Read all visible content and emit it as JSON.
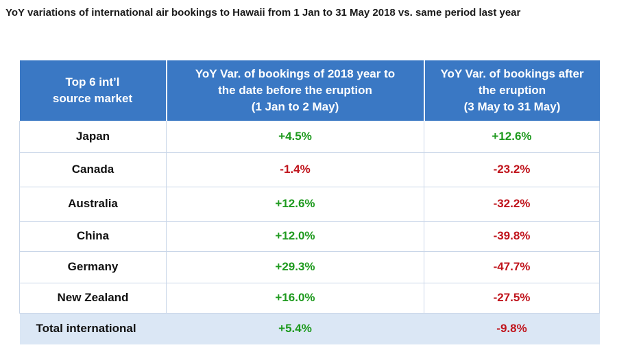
{
  "title": "YoY variations of international air bookings to Hawaii from 1 Jan to 31 May 2018 vs. same period last year",
  "colors": {
    "header_bg": "#3a78c4",
    "total_row_bg": "#dbe7f5",
    "positive": "#1e9a1e",
    "negative": "#c0141c"
  },
  "chart_data": {
    "type": "table",
    "title": "YoY variations of international air bookings to Hawaii from 1 Jan to 31 May 2018 vs. same period last year",
    "columns": [
      [
        "Top 6 int’l",
        "source market"
      ],
      [
        "YoY Var. of bookings of 2018 year to",
        "the date before the eruption",
        "(1 Jan to 2 May)"
      ],
      [
        "YoY Var. of bookings after",
        "the eruption",
        "(3 May to 31 May)"
      ]
    ],
    "rows": [
      {
        "market": "Japan",
        "before": "+4.5%",
        "after": "+12.6%"
      },
      {
        "market": "Canada",
        "before": "-1.4%",
        "after": "-23.2%"
      },
      {
        "market": "Australia",
        "before": "+12.6%",
        "after": "-32.2%"
      },
      {
        "market": "China",
        "before": "+12.0%",
        "after": "-39.8%"
      },
      {
        "market": "Germany",
        "before": "+29.3%",
        "after": "-47.7%"
      },
      {
        "market": "New Zealand",
        "before": "+16.0%",
        "after": "-27.5%"
      }
    ],
    "total": {
      "market": "Total international",
      "before": "+5.4%",
      "after": "-9.8%"
    },
    "values_before": [
      4.5,
      -1.4,
      12.6,
      12.0,
      29.3,
      16.0
    ],
    "values_after": [
      12.6,
      -23.2,
      -32.2,
      -39.8,
      -47.7,
      -27.5
    ],
    "total_values": {
      "before": 5.4,
      "after": -9.8
    }
  }
}
